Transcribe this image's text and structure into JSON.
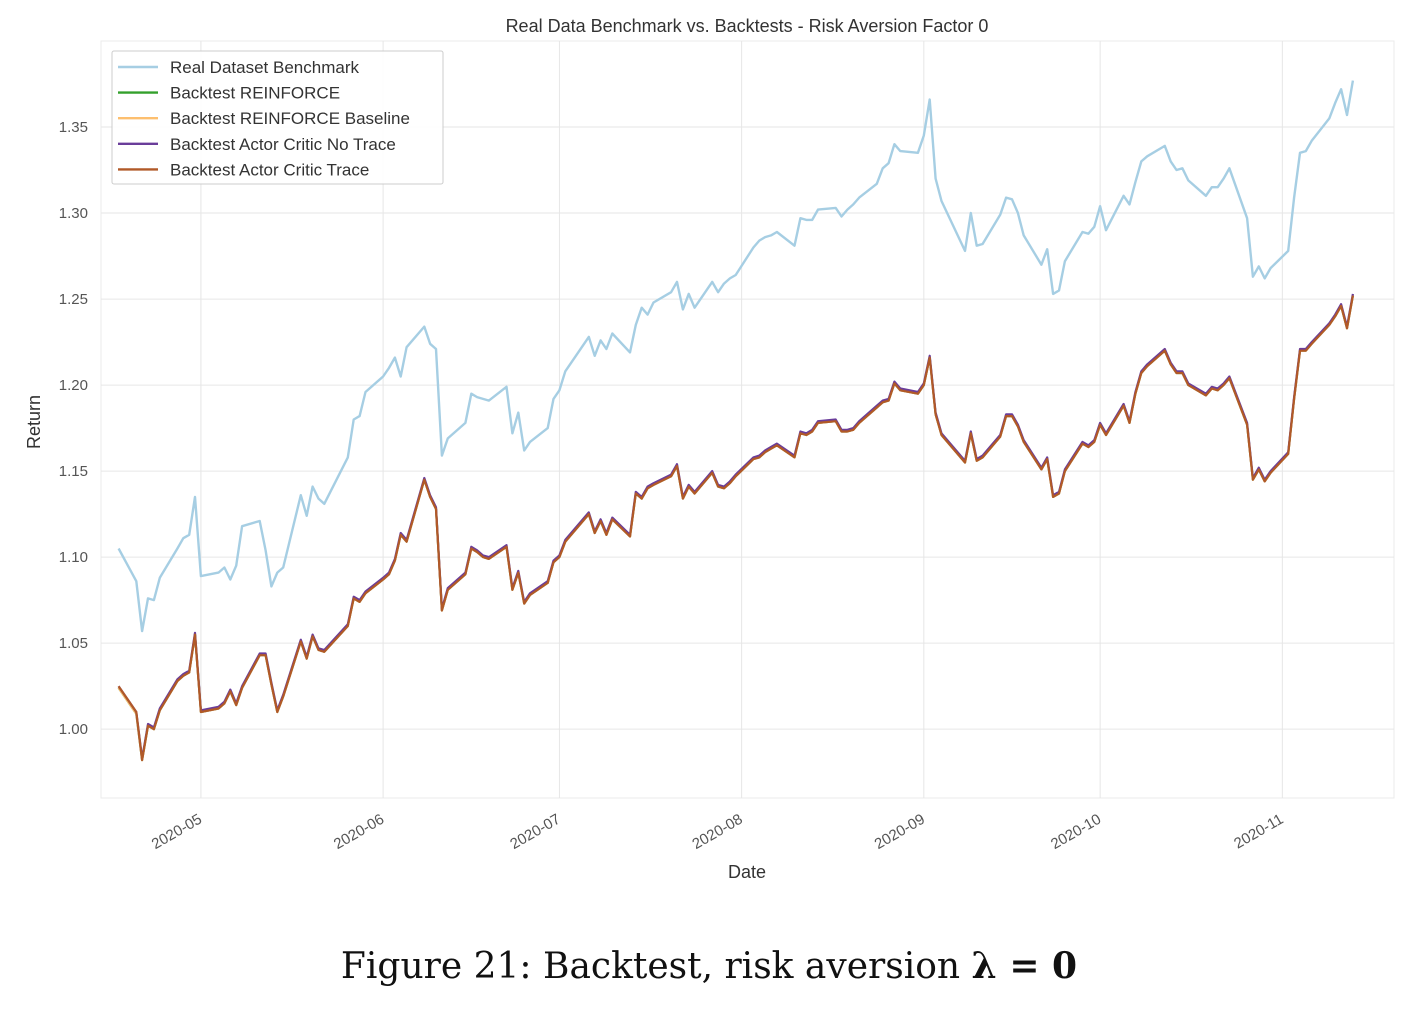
{
  "chart_data": {
    "type": "line",
    "title": "Real Data Benchmark vs. Backtests - Risk Aversion Factor 0",
    "xlabel": "Date",
    "ylabel": "Return",
    "xlim": [
      "2020-04-14",
      "2020-11-20"
    ],
    "ylim": [
      0.96,
      1.4
    ],
    "x_ticks": [
      "2020-05",
      "2020-06",
      "2020-07",
      "2020-08",
      "2020-09",
      "2020-10",
      "2020-11"
    ],
    "y_ticks": [
      "1.00",
      "1.05",
      "1.10",
      "1.15",
      "1.20",
      "1.25",
      "1.30",
      "1.35"
    ],
    "grid": true,
    "legend_position": "top-left",
    "dates": [
      "2020-04-17",
      "2020-04-20",
      "2020-04-21",
      "2020-04-22",
      "2020-04-23",
      "2020-04-24",
      "2020-04-27",
      "2020-04-28",
      "2020-04-29",
      "2020-04-30",
      "2020-05-01",
      "2020-05-04",
      "2020-05-05",
      "2020-05-06",
      "2020-05-07",
      "2020-05-08",
      "2020-05-11",
      "2020-05-12",
      "2020-05-13",
      "2020-05-14",
      "2020-05-15",
      "2020-05-18",
      "2020-05-19",
      "2020-05-20",
      "2020-05-21",
      "2020-05-22",
      "2020-05-26",
      "2020-05-27",
      "2020-05-28",
      "2020-05-29",
      "2020-06-01",
      "2020-06-02",
      "2020-06-03",
      "2020-06-04",
      "2020-06-05",
      "2020-06-08",
      "2020-06-09",
      "2020-06-10",
      "2020-06-11",
      "2020-06-12",
      "2020-06-15",
      "2020-06-16",
      "2020-06-17",
      "2020-06-18",
      "2020-06-19",
      "2020-06-22",
      "2020-06-23",
      "2020-06-24",
      "2020-06-25",
      "2020-06-26",
      "2020-06-29",
      "2020-06-30",
      "2020-07-01",
      "2020-07-02",
      "2020-07-06",
      "2020-07-07",
      "2020-07-08",
      "2020-07-09",
      "2020-07-10",
      "2020-07-13",
      "2020-07-14",
      "2020-07-15",
      "2020-07-16",
      "2020-07-17",
      "2020-07-20",
      "2020-07-21",
      "2020-07-22",
      "2020-07-23",
      "2020-07-24",
      "2020-07-27",
      "2020-07-28",
      "2020-07-29",
      "2020-07-30",
      "2020-07-31",
      "2020-08-03",
      "2020-08-04",
      "2020-08-05",
      "2020-08-06",
      "2020-08-07",
      "2020-08-10",
      "2020-08-11",
      "2020-08-12",
      "2020-08-13",
      "2020-08-14",
      "2020-08-17",
      "2020-08-18",
      "2020-08-19",
      "2020-08-20",
      "2020-08-21",
      "2020-08-24",
      "2020-08-25",
      "2020-08-26",
      "2020-08-27",
      "2020-08-28",
      "2020-08-31",
      "2020-09-01",
      "2020-09-02",
      "2020-09-03",
      "2020-09-04",
      "2020-09-08",
      "2020-09-09",
      "2020-09-10",
      "2020-09-11",
      "2020-09-14",
      "2020-09-15",
      "2020-09-16",
      "2020-09-17",
      "2020-09-18",
      "2020-09-21",
      "2020-09-22",
      "2020-09-23",
      "2020-09-24",
      "2020-09-25",
      "2020-09-28",
      "2020-09-29",
      "2020-09-30",
      "2020-10-01",
      "2020-10-02",
      "2020-10-05",
      "2020-10-06",
      "2020-10-07",
      "2020-10-08",
      "2020-10-09",
      "2020-10-12",
      "2020-10-13",
      "2020-10-14",
      "2020-10-15",
      "2020-10-16",
      "2020-10-19",
      "2020-10-20",
      "2020-10-21",
      "2020-10-22",
      "2020-10-23",
      "2020-10-26",
      "2020-10-27",
      "2020-10-28",
      "2020-10-29",
      "2020-10-30",
      "2020-11-02",
      "2020-11-03",
      "2020-11-04",
      "2020-11-05",
      "2020-11-06",
      "2020-11-09",
      "2020-11-10",
      "2020-11-11",
      "2020-11-12",
      "2020-11-13"
    ],
    "series": [
      {
        "name": "Real Dataset Benchmark",
        "color": "#a6cee3",
        "values": [
          1.105,
          1.086,
          1.057,
          1.076,
          1.075,
          1.088,
          1.105,
          1.111,
          1.113,
          1.135,
          1.089,
          1.091,
          1.094,
          1.087,
          1.095,
          1.118,
          1.121,
          1.104,
          1.083,
          1.091,
          1.094,
          1.136,
          1.124,
          1.141,
          1.134,
          1.131,
          1.158,
          1.18,
          1.182,
          1.196,
          1.205,
          1.21,
          1.216,
          1.205,
          1.222,
          1.234,
          1.224,
          1.221,
          1.159,
          1.169,
          1.178,
          1.195,
          1.193,
          1.192,
          1.191,
          1.199,
          1.172,
          1.184,
          1.162,
          1.167,
          1.175,
          1.192,
          1.197,
          1.208,
          1.228,
          1.217,
          1.226,
          1.221,
          1.23,
          1.219,
          1.235,
          1.245,
          1.241,
          1.248,
          1.254,
          1.26,
          1.244,
          1.253,
          1.245,
          1.26,
          1.254,
          1.259,
          1.262,
          1.264,
          1.28,
          1.284,
          1.286,
          1.287,
          1.289,
          1.281,
          1.297,
          1.296,
          1.296,
          1.302,
          1.303,
          1.298,
          1.302,
          1.305,
          1.309,
          1.317,
          1.326,
          1.329,
          1.34,
          1.336,
          1.335,
          1.345,
          1.366,
          1.32,
          1.307,
          1.278,
          1.3,
          1.281,
          1.282,
          1.299,
          1.309,
          1.308,
          1.3,
          1.287,
          1.27,
          1.279,
          1.253,
          1.255,
          1.272,
          1.289,
          1.288,
          1.292,
          1.304,
          1.29,
          1.31,
          1.305,
          1.318,
          1.33,
          1.333,
          1.339,
          1.33,
          1.325,
          1.326,
          1.319,
          1.31,
          1.315,
          1.315,
          1.32,
          1.326,
          1.297,
          1.263,
          1.269,
          1.262,
          1.268,
          1.278,
          1.309,
          1.335,
          1.336,
          1.342,
          1.355,
          1.364,
          1.372,
          1.357,
          1.377
        ]
      },
      {
        "name": "Backtest REINFORCE",
        "color": "#33a02c",
        "values": [
          1.024,
          1.009,
          0.982,
          1.002,
          1.0,
          1.011,
          1.028,
          1.031,
          1.033,
          1.055,
          1.01,
          1.012,
          1.015,
          1.022,
          1.014,
          1.024,
          1.043,
          1.043,
          1.026,
          1.01,
          1.019,
          1.051,
          1.041,
          1.054,
          1.046,
          1.045,
          1.06,
          1.076,
          1.074,
          1.079,
          1.087,
          1.09,
          1.098,
          1.113,
          1.109,
          1.145,
          1.135,
          1.128,
          1.069,
          1.081,
          1.09,
          1.105,
          1.103,
          1.1,
          1.099,
          1.106,
          1.081,
          1.091,
          1.073,
          1.078,
          1.085,
          1.097,
          1.1,
          1.109,
          1.125,
          1.114,
          1.121,
          1.113,
          1.122,
          1.112,
          1.137,
          1.134,
          1.14,
          1.142,
          1.147,
          1.153,
          1.134,
          1.141,
          1.137,
          1.149,
          1.141,
          1.14,
          1.143,
          1.147,
          1.157,
          1.158,
          1.161,
          1.163,
          1.165,
          1.158,
          1.172,
          1.171,
          1.173,
          1.178,
          1.179,
          1.173,
          1.173,
          1.174,
          1.178,
          1.187,
          1.19,
          1.191,
          1.201,
          1.197,
          1.195,
          1.2,
          1.216,
          1.183,
          1.171,
          1.155,
          1.172,
          1.156,
          1.158,
          1.17,
          1.182,
          1.182,
          1.176,
          1.167,
          1.151,
          1.157,
          1.135,
          1.137,
          1.15,
          1.166,
          1.164,
          1.167,
          1.177,
          1.171,
          1.188,
          1.178,
          1.195,
          1.207,
          1.211,
          1.22,
          1.212,
          1.207,
          1.207,
          1.2,
          1.194,
          1.198,
          1.197,
          1.2,
          1.204,
          1.177,
          1.145,
          1.151,
          1.144,
          1.149,
          1.16,
          1.192,
          1.22,
          1.22,
          1.224,
          1.235,
          1.24,
          1.246,
          1.233,
          1.252
        ]
      },
      {
        "name": "Backtest REINFORCE Baseline",
        "color": "#fdbf6f",
        "values": [
          1.024,
          1.009,
          0.982,
          1.002,
          1.0,
          1.011,
          1.028,
          1.031,
          1.033,
          1.055,
          1.01,
          1.012,
          1.015,
          1.022,
          1.014,
          1.024,
          1.043,
          1.043,
          1.026,
          1.01,
          1.019,
          1.051,
          1.041,
          1.054,
          1.046,
          1.045,
          1.06,
          1.076,
          1.074,
          1.079,
          1.087,
          1.09,
          1.098,
          1.113,
          1.109,
          1.145,
          1.135,
          1.128,
          1.069,
          1.081,
          1.09,
          1.105,
          1.103,
          1.1,
          1.099,
          1.106,
          1.081,
          1.091,
          1.073,
          1.078,
          1.085,
          1.097,
          1.1,
          1.109,
          1.125,
          1.114,
          1.121,
          1.113,
          1.122,
          1.112,
          1.137,
          1.134,
          1.14,
          1.142,
          1.147,
          1.153,
          1.134,
          1.141,
          1.137,
          1.149,
          1.141,
          1.14,
          1.143,
          1.147,
          1.157,
          1.158,
          1.161,
          1.163,
          1.165,
          1.158,
          1.172,
          1.171,
          1.173,
          1.178,
          1.179,
          1.173,
          1.173,
          1.174,
          1.178,
          1.187,
          1.19,
          1.191,
          1.201,
          1.197,
          1.195,
          1.2,
          1.216,
          1.183,
          1.171,
          1.155,
          1.172,
          1.156,
          1.158,
          1.17,
          1.182,
          1.182,
          1.176,
          1.167,
          1.151,
          1.157,
          1.135,
          1.137,
          1.15,
          1.166,
          1.164,
          1.167,
          1.177,
          1.171,
          1.188,
          1.178,
          1.195,
          1.207,
          1.211,
          1.22,
          1.212,
          1.207,
          1.207,
          1.2,
          1.194,
          1.198,
          1.197,
          1.2,
          1.204,
          1.177,
          1.145,
          1.151,
          1.144,
          1.149,
          1.16,
          1.192,
          1.22,
          1.22,
          1.224,
          1.235,
          1.24,
          1.246,
          1.233,
          1.252
        ]
      },
      {
        "name": "Backtest Actor Critic No Trace",
        "color": "#6a3d9a",
        "values": [
          1.025,
          1.01,
          0.983,
          1.003,
          1.001,
          1.012,
          1.029,
          1.032,
          1.034,
          1.056,
          1.011,
          1.013,
          1.016,
          1.023,
          1.015,
          1.025,
          1.044,
          1.044,
          1.027,
          1.011,
          1.02,
          1.052,
          1.042,
          1.055,
          1.047,
          1.046,
          1.061,
          1.077,
          1.075,
          1.08,
          1.088,
          1.091,
          1.099,
          1.114,
          1.11,
          1.146,
          1.136,
          1.129,
          1.07,
          1.082,
          1.091,
          1.106,
          1.104,
          1.101,
          1.1,
          1.107,
          1.082,
          1.092,
          1.074,
          1.079,
          1.086,
          1.098,
          1.101,
          1.11,
          1.126,
          1.115,
          1.122,
          1.114,
          1.123,
          1.113,
          1.138,
          1.135,
          1.141,
          1.143,
          1.148,
          1.154,
          1.135,
          1.142,
          1.138,
          1.15,
          1.142,
          1.141,
          1.144,
          1.148,
          1.158,
          1.159,
          1.162,
          1.164,
          1.166,
          1.159,
          1.173,
          1.172,
          1.174,
          1.179,
          1.18,
          1.174,
          1.174,
          1.175,
          1.179,
          1.188,
          1.191,
          1.192,
          1.202,
          1.198,
          1.196,
          1.201,
          1.217,
          1.184,
          1.172,
          1.156,
          1.173,
          1.157,
          1.159,
          1.171,
          1.183,
          1.183,
          1.177,
          1.168,
          1.152,
          1.158,
          1.136,
          1.138,
          1.151,
          1.167,
          1.165,
          1.168,
          1.178,
          1.172,
          1.189,
          1.179,
          1.196,
          1.208,
          1.212,
          1.221,
          1.213,
          1.208,
          1.208,
          1.201,
          1.195,
          1.199,
          1.198,
          1.201,
          1.205,
          1.178,
          1.146,
          1.152,
          1.145,
          1.15,
          1.161,
          1.193,
          1.221,
          1.221,
          1.225,
          1.236,
          1.241,
          1.247,
          1.234,
          1.253
        ]
      },
      {
        "name": "Backtest Actor Critic Trace",
        "color": "#b15928",
        "values": [
          1.025,
          1.01,
          0.982,
          1.002,
          1.0,
          1.011,
          1.028,
          1.031,
          1.033,
          1.055,
          1.01,
          1.012,
          1.015,
          1.022,
          1.014,
          1.024,
          1.043,
          1.043,
          1.026,
          1.01,
          1.019,
          1.051,
          1.041,
          1.054,
          1.046,
          1.045,
          1.06,
          1.076,
          1.074,
          1.079,
          1.087,
          1.09,
          1.098,
          1.113,
          1.109,
          1.145,
          1.135,
          1.128,
          1.069,
          1.081,
          1.09,
          1.105,
          1.103,
          1.1,
          1.099,
          1.106,
          1.081,
          1.091,
          1.073,
          1.078,
          1.085,
          1.097,
          1.1,
          1.109,
          1.125,
          1.114,
          1.121,
          1.113,
          1.122,
          1.112,
          1.137,
          1.134,
          1.14,
          1.142,
          1.147,
          1.153,
          1.134,
          1.141,
          1.137,
          1.149,
          1.141,
          1.14,
          1.143,
          1.147,
          1.157,
          1.158,
          1.161,
          1.163,
          1.165,
          1.158,
          1.172,
          1.171,
          1.173,
          1.178,
          1.179,
          1.173,
          1.173,
          1.174,
          1.178,
          1.187,
          1.19,
          1.191,
          1.201,
          1.197,
          1.195,
          1.2,
          1.216,
          1.183,
          1.171,
          1.155,
          1.172,
          1.156,
          1.158,
          1.17,
          1.182,
          1.182,
          1.176,
          1.167,
          1.151,
          1.157,
          1.135,
          1.137,
          1.15,
          1.166,
          1.164,
          1.167,
          1.177,
          1.171,
          1.188,
          1.178,
          1.195,
          1.207,
          1.211,
          1.22,
          1.212,
          1.207,
          1.207,
          1.2,
          1.194,
          1.198,
          1.197,
          1.2,
          1.204,
          1.177,
          1.145,
          1.151,
          1.144,
          1.149,
          1.16,
          1.192,
          1.22,
          1.22,
          1.224,
          1.235,
          1.24,
          1.246,
          1.233,
          1.252
        ]
      }
    ]
  },
  "caption": {
    "prefix": "Figure 21: Backtest, risk aversion ",
    "symbol": "λ = 0"
  }
}
